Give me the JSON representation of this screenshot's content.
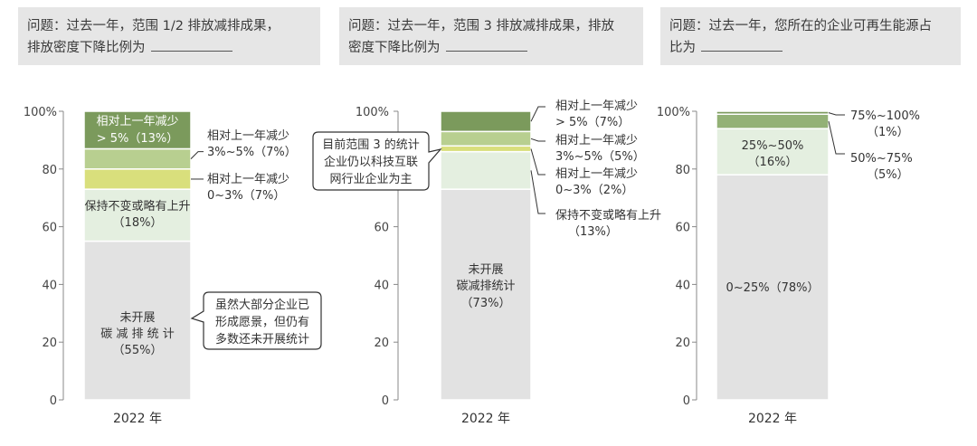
{
  "questions": [
    {
      "text": "问题：过去一年，范围 1/2 排放减排成果，",
      "text2": "排放密度下降比例为"
    },
    {
      "text": "问题：过去一年，范围 3 排放减排成果，排放",
      "text2": "密度下降比例为"
    },
    {
      "text": "问题：过去一年，您所在的企业可再生能源占",
      "text2": "比为"
    }
  ],
  "colors": {
    "grey": "#e2e2e2",
    "pale_green": "#e4efe0",
    "light_green": "#b8cf90",
    "yellow_green": "#d9df7c",
    "mid_green": "#93b176",
    "dark_green": "#7b9a5c"
  },
  "chart_data": [
    {
      "type": "bar",
      "stacked": true,
      "categories": [
        "2022 年"
      ],
      "ylim": [
        0,
        100
      ],
      "yticks": [
        "0",
        "20",
        "40",
        "60",
        "80",
        "100%"
      ],
      "series": [
        {
          "name": "未开展碳减排统计",
          "values": [
            55
          ],
          "label": "(55%)"
        },
        {
          "name": "保持不变或略有上升",
          "values": [
            18
          ],
          "label": "(18%)"
        },
        {
          "name": "相对上一年减少 0~3%",
          "values": [
            7
          ],
          "label": "(7%)"
        },
        {
          "name": "相对上一年减少 3%~5%",
          "values": [
            7
          ],
          "label": "(7%)"
        },
        {
          "name": "相对上一年减少 > 5%",
          "values": [
            13
          ],
          "label": "(13%)"
        }
      ],
      "labels": {
        "s0_l1": "未开展",
        "s0_l2": "碳 减 排 统 计",
        "s0_l3": "（55%）",
        "s1_l1": "保持不变或略有上升",
        "s1_l2": "（18%）",
        "s2_l1": "相对上一年减少",
        "s2_l2": "0~3%（7%）",
        "s3_l1": "相对上一年减少",
        "s3_l2": "3%~5%（7%）",
        "s4_l1": "相对上一年减少",
        "s4_l2": "> 5%（13%）"
      },
      "callout": [
        "虽然大部分企业已",
        "形成愿景，但仍有",
        "多数还未开展统计"
      ]
    },
    {
      "type": "bar",
      "stacked": true,
      "categories": [
        "2022 年"
      ],
      "ylim": [
        0,
        100
      ],
      "yticks": [
        "0",
        "20",
        "40",
        "60",
        "80",
        "100%"
      ],
      "series": [
        {
          "name": "未开展碳减排统计",
          "values": [
            73
          ],
          "label": "(73%)"
        },
        {
          "name": "保持不变或略有上升",
          "values": [
            13
          ],
          "label": "(13%)"
        },
        {
          "name": "相对上一年减少 0~3%",
          "values": [
            2
          ],
          "label": "(2%)"
        },
        {
          "name": "相对上一年减少 3%~5%",
          "values": [
            5
          ],
          "label": "(5%)"
        },
        {
          "name": "相对上一年减少 > 5%",
          "values": [
            7
          ],
          "label": "(7%)"
        }
      ],
      "labels": {
        "s0_l1": "未开展",
        "s0_l2": "碳减排统计",
        "s0_l3": "（73%）",
        "s1_l1": "保持不变或略有上升",
        "s1_l2": "（13%）",
        "s2_l1": "相对上一年减少",
        "s2_l2": "0~3%（2%）",
        "s3_l1": "相对上一年减少",
        "s3_l2": "3%~5%（5%）",
        "s4_l1": "相对上一年减少",
        "s4_l2": "> 5%（7%）"
      },
      "callout": [
        "目前范围 3 的统计",
        "企业仍以科技互联",
        "网行业企业为主"
      ]
    },
    {
      "type": "bar",
      "stacked": true,
      "categories": [
        "2022 年"
      ],
      "ylim": [
        0,
        100
      ],
      "yticks": [
        "0",
        "20",
        "40",
        "60",
        "80",
        "100%"
      ],
      "series": [
        {
          "name": "0~25%",
          "values": [
            78
          ],
          "label": "(78%)"
        },
        {
          "name": "25%~50%",
          "values": [
            16
          ],
          "label": "(16%)"
        },
        {
          "name": "50%~75%",
          "values": [
            5
          ],
          "label": "(5%)"
        },
        {
          "name": "75%~100%",
          "values": [
            1
          ],
          "label": "(1%)"
        }
      ],
      "labels": {
        "s0_l1": "0~25%（78%）",
        "s1_l1": "25%~50%",
        "s1_l2": "（16%）",
        "s2_l1": "50%~75%",
        "s2_l2": "（5%）",
        "s3_l1": "75%~100%",
        "s3_l2": "（1%）"
      }
    }
  ]
}
